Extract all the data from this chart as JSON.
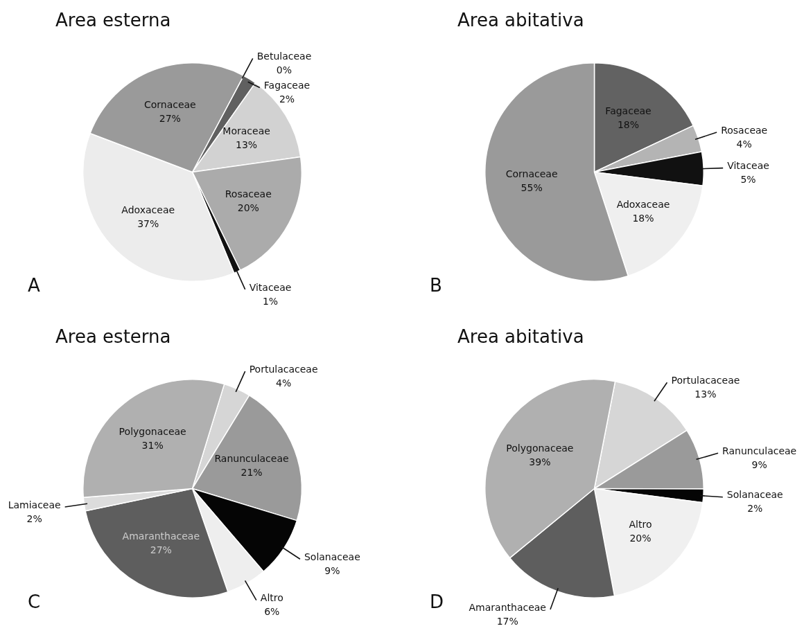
{
  "chart_data": [
    {
      "type": "pie",
      "title": "Area esterna",
      "annotations": [
        "A"
      ],
      "categories": [
        "Betulaceae",
        "Fagaceae",
        "Moraceae",
        "Rosaceae",
        "Vitaceae",
        "Adoxaceae",
        "Cornaceae"
      ],
      "values": [
        0,
        2,
        13,
        20,
        1,
        37,
        27
      ],
      "value_labels": [
        "0%",
        "2%",
        "13%",
        "20%",
        "1%",
        "37%",
        "27%"
      ],
      "colors": [
        "#8a8a8a",
        "#606060",
        "#d2d2d2",
        "#ababab",
        "#111111",
        "#ececec",
        "#9a9a9a"
      ]
    },
    {
      "type": "pie",
      "title": "Area abitativa",
      "annotations": [
        "B"
      ],
      "categories": [
        "Fagaceae",
        "Rosaceae",
        "Vitaceae",
        "Adoxaceae",
        "Cornaceae"
      ],
      "values": [
        18,
        4,
        5,
        18,
        55
      ],
      "value_labels": [
        "18%",
        "4%",
        "5%",
        "18%",
        "55%"
      ],
      "colors": [
        "#626262",
        "#b4b4b4",
        "#111111",
        "#efefef",
        "#9a9a9a"
      ]
    },
    {
      "type": "pie",
      "title": "Area esterna",
      "annotations": [
        "C"
      ],
      "categories": [
        "Portulacaceae",
        "Ranunculaceae",
        "Solanaceae",
        "Altro",
        "Amaranthaceae",
        "Lamiaceae",
        "Polygonaceae"
      ],
      "values": [
        4,
        21,
        9,
        6,
        27,
        2,
        31
      ],
      "value_labels": [
        "4%",
        "21%",
        "9%",
        "6%",
        "27%",
        "2%",
        "31%"
      ],
      "colors": [
        "#d6d6d6",
        "#9a9a9a",
        "#050505",
        "#eeeeee",
        "#5e5e5e",
        "#dcdcdc",
        "#b0b0b0"
      ]
    },
    {
      "type": "pie",
      "title": "Area abitativa",
      "annotations": [
        "D"
      ],
      "categories": [
        "Portulacaceae",
        "Ranunculaceae",
        "Solanaceae",
        "Altro",
        "Amaranthaceae",
        "Polygonaceae"
      ],
      "values": [
        13,
        9,
        2,
        20,
        17,
        39
      ],
      "value_labels": [
        "13%",
        "9%",
        "2%",
        "20%",
        "17%",
        "39%"
      ],
      "colors": [
        "#d6d6d6",
        "#9a9a9a",
        "#050505",
        "#f0f0f0",
        "#5e5e5e",
        "#b0b0b0"
      ]
    }
  ]
}
